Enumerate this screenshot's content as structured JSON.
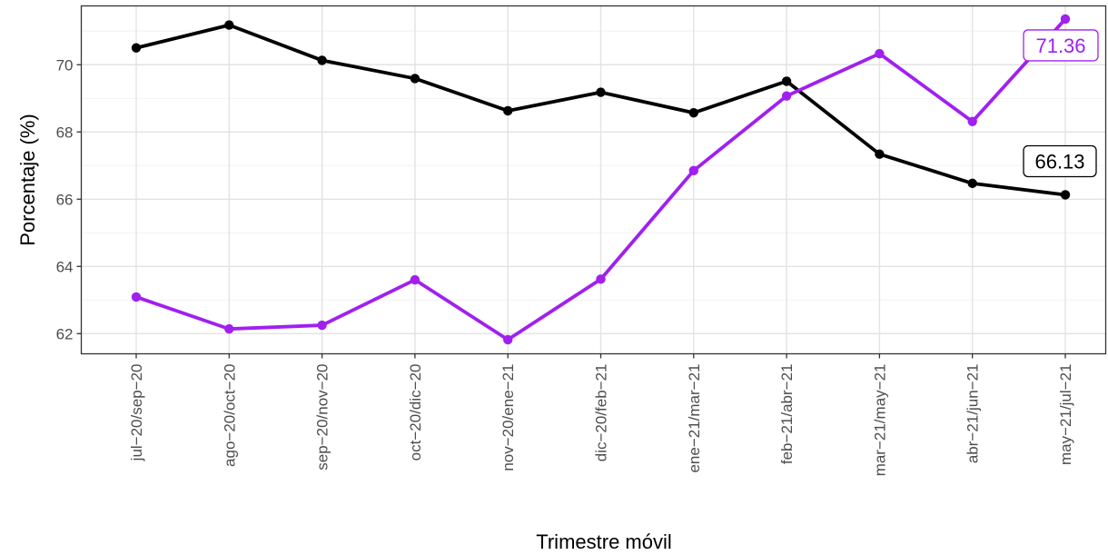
{
  "chart_data": {
    "type": "line",
    "title": "",
    "xlabel": "Trimestre móvil",
    "ylabel": "Porcentaje (%)",
    "ylim": [
      61.4,
      71.75
    ],
    "yticks": [
      62,
      64,
      66,
      68,
      70
    ],
    "grid": true,
    "legend": "none",
    "categories": [
      "jul−20/sep−20",
      "ago−20/oct−20",
      "sep−20/nov−20",
      "oct−20/dic−20",
      "nov−20/ene−21",
      "dic−20/feb−21",
      "ene−21/mar−21",
      "feb−21/abr−21",
      "mar−21/may−21",
      "abr−21/jun−21",
      "may−21/jul−21"
    ],
    "series": [
      {
        "color": "#000000",
        "values": [
          70.5,
          71.18,
          70.13,
          69.59,
          68.63,
          69.18,
          68.57,
          69.51,
          67.34,
          66.47,
          66.13
        ],
        "end_label": "66.13"
      },
      {
        "color": "#a020f0",
        "values": [
          63.09,
          62.14,
          62.25,
          63.6,
          61.82,
          63.62,
          66.85,
          69.07,
          70.33,
          68.31,
          71.36
        ],
        "end_label": "71.36"
      }
    ]
  }
}
